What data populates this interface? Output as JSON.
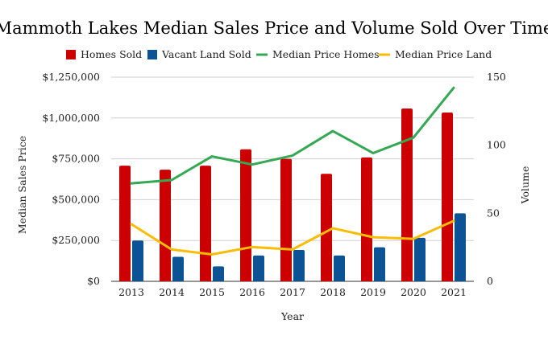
{
  "chart_data": {
    "type": "bar",
    "title": "Mammoth Lakes Median Sales Price and Volume Sold Over Time",
    "xlabel": "Year",
    "ylabel": "Median Sales Price",
    "y2label": "Volume",
    "categories": [
      "2013",
      "2014",
      "2015",
      "2016",
      "2017",
      "2018",
      "2019",
      "2020",
      "2021"
    ],
    "ylim": [
      0,
      1250000
    ],
    "y_ticks": [
      0,
      250000,
      500000,
      750000,
      1000000,
      1250000
    ],
    "y_tick_labels": [
      "$0",
      "$250,000",
      "$500,000",
      "$750,000",
      "$1,000,000",
      "$1,250,000"
    ],
    "y2lim": [
      0,
      150
    ],
    "y2_ticks": [
      0,
      50,
      100,
      150
    ],
    "y2_tick_labels": [
      "0",
      "50",
      "100",
      "150"
    ],
    "grid": true,
    "legend_position": "top",
    "series": [
      {
        "name": "Homes Sold",
        "type": "bar",
        "axis": "right",
        "color": "#cc0000",
        "values": [
          85,
          82,
          85,
          97,
          90,
          79,
          91,
          127,
          124
        ]
      },
      {
        "name": "Vacant Land Sold",
        "type": "bar",
        "axis": "right",
        "color": "#0b5394",
        "values": [
          30,
          18,
          11,
          19,
          23,
          19,
          25,
          32,
          50
        ]
      },
      {
        "name": "Median Price Homes",
        "type": "line",
        "axis": "left",
        "color": "#34a853",
        "values": [
          600000,
          620000,
          765000,
          715000,
          770000,
          920000,
          785000,
          880000,
          1185000
        ]
      },
      {
        "name": "Median Price Land",
        "type": "line",
        "axis": "left",
        "color": "#fbbc04",
        "values": [
          350000,
          195000,
          165000,
          210000,
          195000,
          325000,
          270000,
          260000,
          370000
        ]
      }
    ]
  }
}
